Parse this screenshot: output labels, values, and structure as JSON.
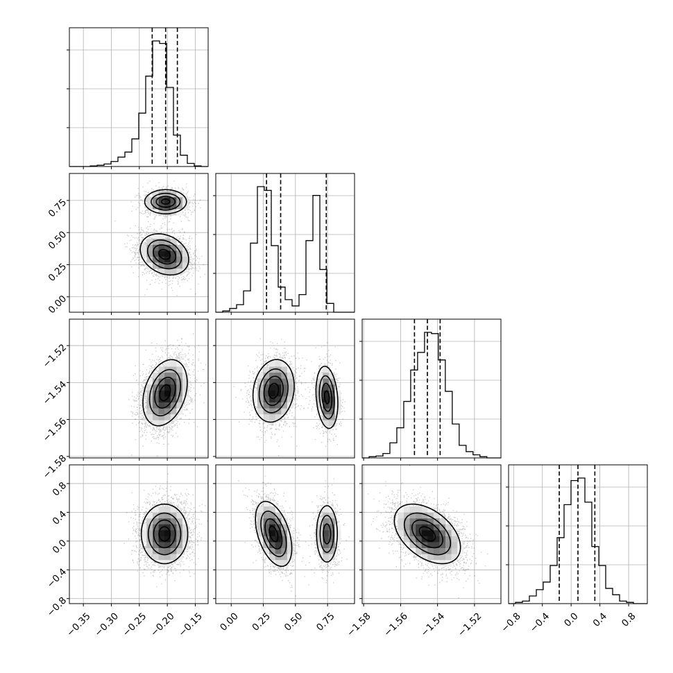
{
  "chart_data": {
    "type": "corner",
    "parameters": [
      {
        "ticks": [
          -0.35,
          -0.3,
          -0.25,
          -0.2,
          -0.15
        ],
        "tick_labels": [
          "−0.35",
          "−0.30",
          "−0.25",
          "−0.20",
          "−0.15"
        ],
        "range": [
          -0.375,
          -0.127
        ],
        "quantiles": [
          -0.227,
          -0.203,
          -0.182
        ],
        "histogram": {
          "edges_start": -0.375,
          "bin_width": 0.0124,
          "counts": [
            0,
            0,
            0,
            0.005,
            0.01,
            0.02,
            0.04,
            0.075,
            0.115,
            0.22,
            0.425,
            0.72,
            1.0,
            0.98,
            0.63,
            0.25,
            0.09,
            0.025,
            0.005,
            0
          ]
        }
      },
      {
        "ticks": [
          0.0,
          0.25,
          0.5,
          0.75
        ],
        "tick_labels": [
          "0.00",
          "0.25",
          "0.50",
          "0.75"
        ],
        "range": [
          -0.12,
          0.96
        ],
        "quantiles": [
          0.275,
          0.385,
          0.74
        ],
        "histogram": {
          "edges_start": -0.12,
          "bin_width": 0.054,
          "counts": [
            0,
            0.01,
            0.03,
            0.06,
            0.17,
            0.55,
            1.0,
            0.97,
            0.53,
            0.2,
            0.1,
            0.05,
            0.14,
            0.57,
            0.93,
            0.34,
            0.07,
            0,
            0,
            0
          ]
        }
      },
      {
        "ticks": [
          -1.58,
          -1.56,
          -1.54,
          -1.52
        ],
        "tick_labels": [
          "−1.58",
          "−1.56",
          "−1.54",
          "−1.52"
        ],
        "range": [
          -1.5808,
          -1.5057
        ],
        "quantiles": [
          -1.5525,
          -1.5455,
          -1.5386
        ],
        "histogram": {
          "edges_start": -1.5808,
          "bin_width": 0.00375,
          "counts": [
            0,
            0.01,
            0.015,
            0.035,
            0.12,
            0.24,
            0.45,
            0.7,
            0.84,
            1.0,
            0.99,
            0.78,
            0.53,
            0.27,
            0.1,
            0.05,
            0.025,
            0.01,
            0,
            0
          ]
        }
      },
      {
        "ticks": [
          -0.8,
          -0.4,
          0.0,
          0.4,
          0.8
        ],
        "tick_labels": [
          "−0.8",
          "−0.4",
          "0.0",
          "0.4",
          "0.8"
        ],
        "range": [
          -0.87,
          1.06
        ],
        "quantiles": [
          -0.165,
          0.095,
          0.33
        ],
        "histogram": {
          "edges_start": -0.87,
          "bin_width": 0.0965,
          "counts": [
            0,
            0.01,
            0.02,
            0.06,
            0.11,
            0.17,
            0.3,
            0.52,
            0.78,
            0.97,
            0.99,
            0.8,
            0.45,
            0.3,
            0.12,
            0.07,
            0.02,
            0.01,
            0,
            0
          ]
        }
      }
    ],
    "pairs": [
      {
        "x": 0,
        "y": 1,
        "modes": [
          {
            "center": [
              -0.203,
              0.74
            ],
            "sd": [
              0.02,
              0.05
            ],
            "corr": 0.0,
            "weight": 0.34
          },
          {
            "center": [
              -0.205,
              0.33
            ],
            "sd": [
              0.023,
              0.085
            ],
            "corr": -0.25,
            "weight": 0.66
          }
        ]
      },
      {
        "x": 0,
        "y": 2,
        "modes": [
          {
            "center": [
              -0.204,
              -1.5455
            ],
            "sd": [
              0.021,
              0.0095
            ],
            "corr": 0.3,
            "weight": 1.0
          }
        ]
      },
      {
        "x": 1,
        "y": 2,
        "modes": [
          {
            "center": [
              0.33,
              -1.5445
            ],
            "sd": [
              0.085,
              0.009
            ],
            "corr": 0.15,
            "weight": 0.66
          },
          {
            "center": [
              0.745,
              -1.548
            ],
            "sd": [
              0.045,
              0.009
            ],
            "corr": -0.2,
            "weight": 0.34
          }
        ]
      },
      {
        "x": 0,
        "y": 3,
        "modes": [
          {
            "center": [
              -0.205,
              0.1
            ],
            "sd": [
              0.022,
              0.22
            ],
            "corr": 0.0,
            "weight": 1.0
          }
        ]
      },
      {
        "x": 1,
        "y": 3,
        "modes": [
          {
            "center": [
              0.33,
              0.1
            ],
            "sd": [
              0.075,
              0.24
            ],
            "corr": -0.45,
            "weight": 0.66
          },
          {
            "center": [
              0.745,
              0.1
            ],
            "sd": [
              0.045,
              0.22
            ],
            "corr": 0.0,
            "weight": 0.34
          }
        ]
      },
      {
        "x": 2,
        "y": 3,
        "modes": [
          {
            "center": [
              -1.5455,
              0.1
            ],
            "sd": [
              0.0095,
              0.22
            ],
            "corr": -0.45,
            "weight": 1.0
          }
        ]
      }
    ],
    "grid": true,
    "colors": {
      "ink": "#000000",
      "grid": "#b0b0b0",
      "background": "#ffffff"
    }
  }
}
